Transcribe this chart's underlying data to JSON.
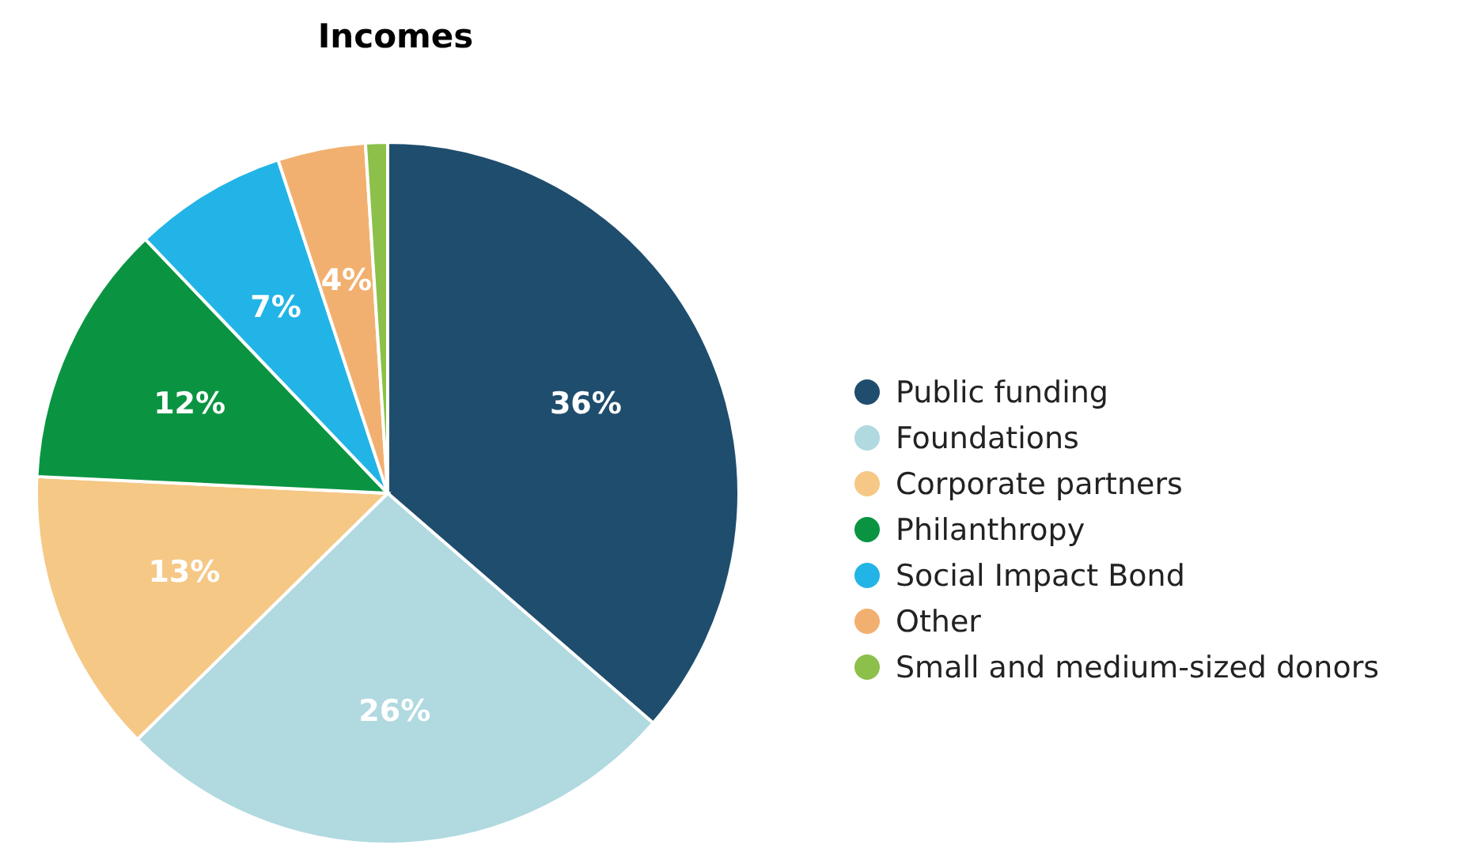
{
  "chart_data": {
    "type": "pie",
    "title": "Incomes",
    "categories": [
      "Public funding",
      "Foundations",
      "Corporate partners",
      "Philanthropy",
      "Social Impact Bond",
      "Other",
      "Small and medium-sized donors"
    ],
    "values": [
      36,
      26,
      13,
      12,
      7,
      4,
      1
    ],
    "colors": [
      "#1f4d6d",
      "#b0d9e0",
      "#f5c886",
      "#0a9442",
      "#22b4e6",
      "#f2b070",
      "#8cc04a"
    ],
    "value_labels": [
      "36%",
      "26%",
      "13%",
      "12%",
      "7%",
      "4%",
      null
    ],
    "legend": "right"
  }
}
